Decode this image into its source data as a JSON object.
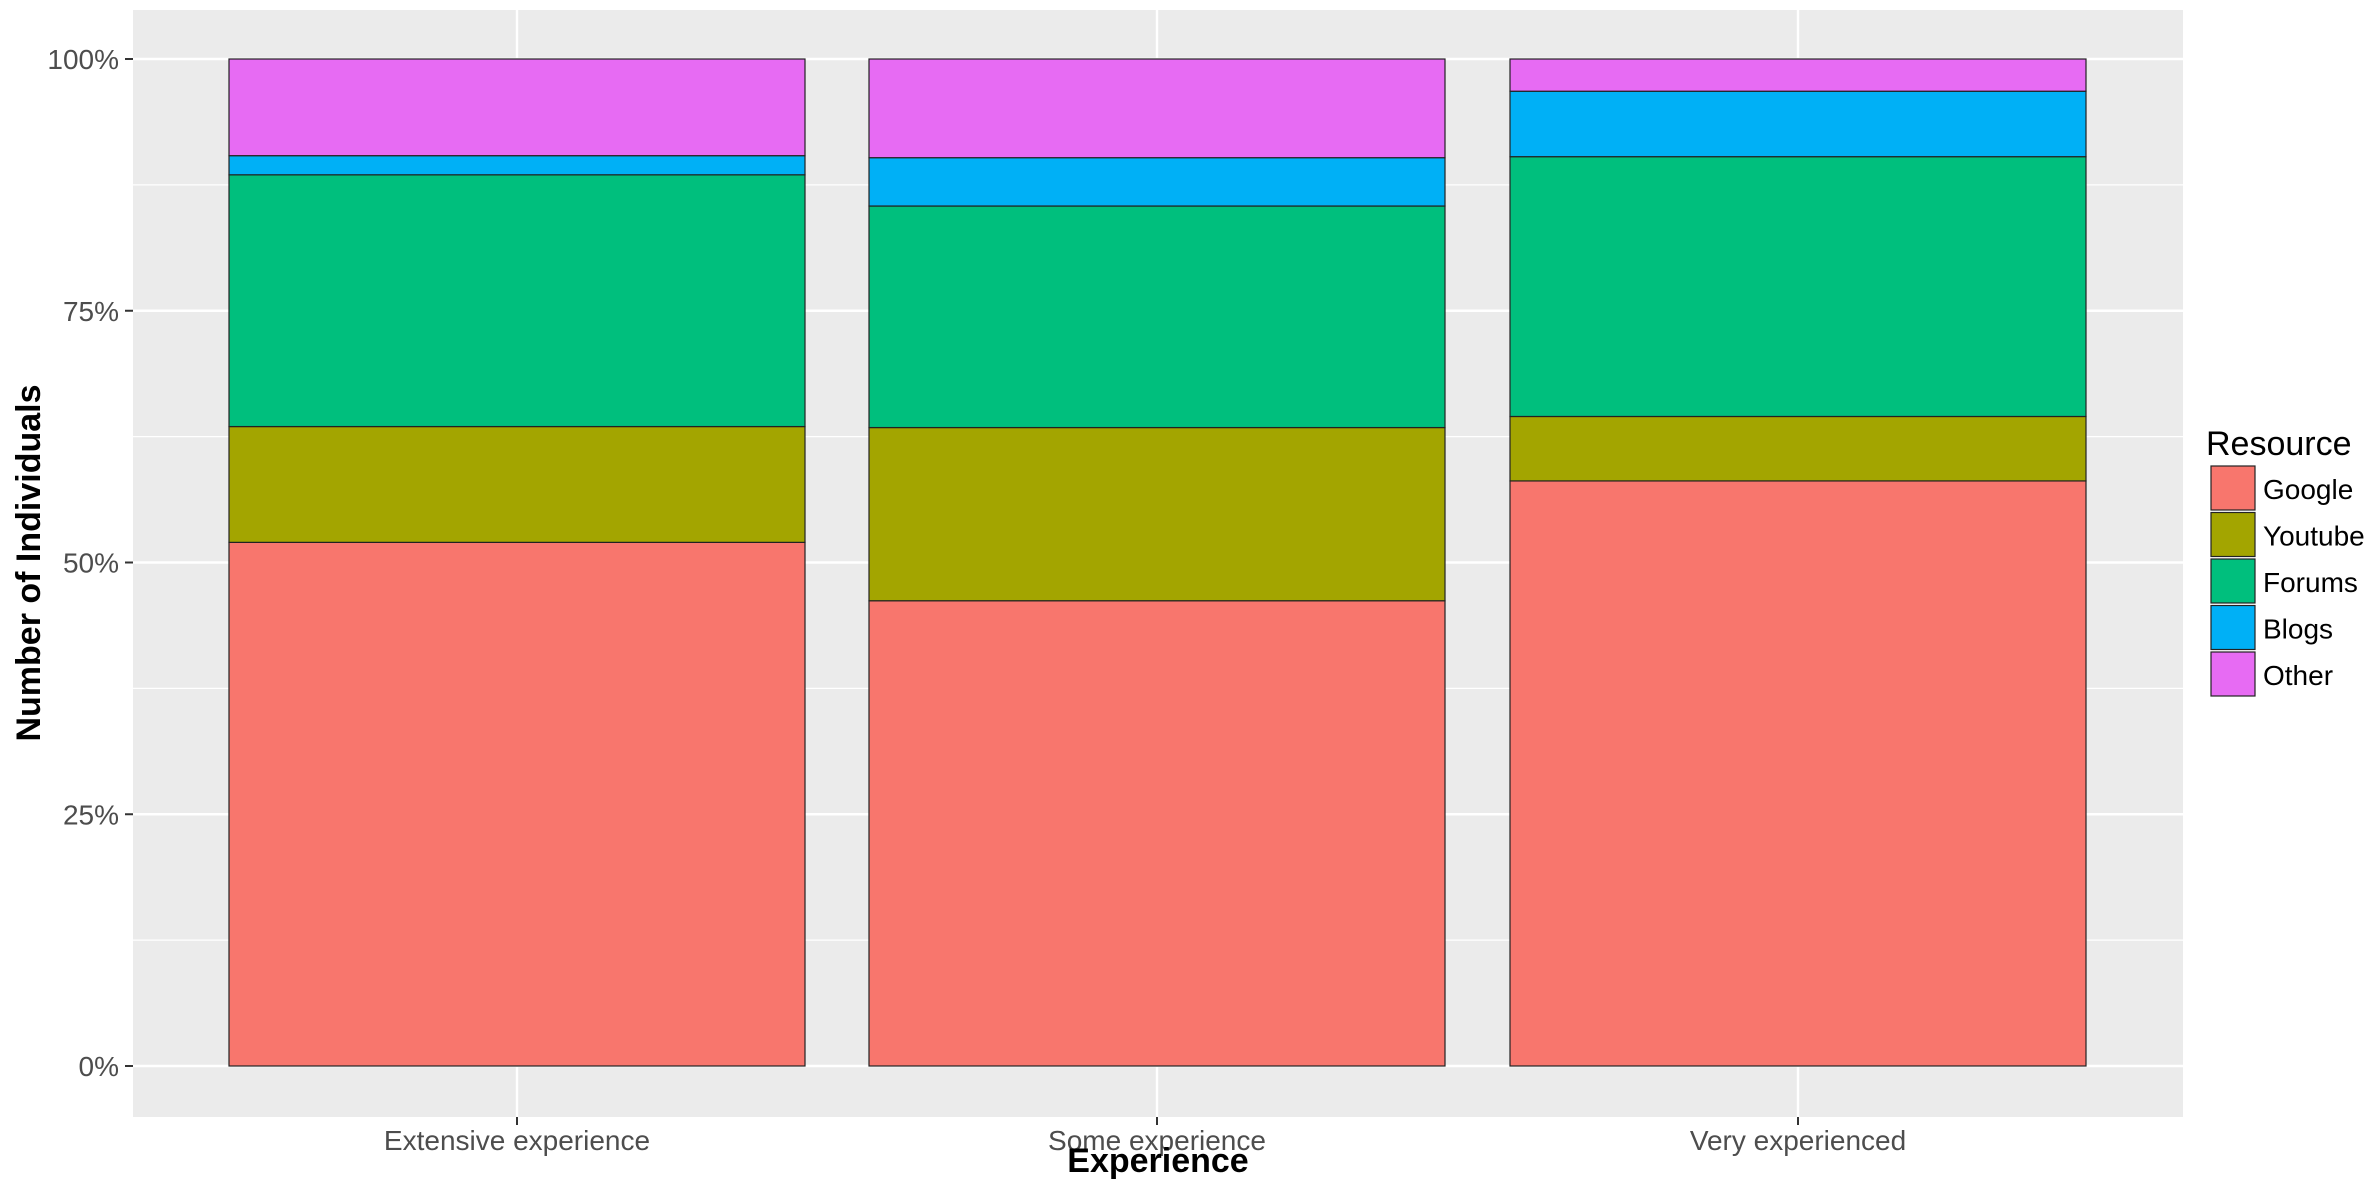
{
  "chart_data": {
    "type": "bar",
    "stacked": "percent",
    "categories": [
      "Extensive experience",
      "Some experience",
      "Very experienced"
    ],
    "series": [
      {
        "name": "Google",
        "color": "#F8766D",
        "values": [
          52.0,
          46.2,
          58.1
        ]
      },
      {
        "name": "Youtube",
        "color": "#A3A500",
        "values": [
          11.5,
          17.2,
          6.4
        ]
      },
      {
        "name": "Forums",
        "color": "#00BF7D",
        "values": [
          25.0,
          22.0,
          25.8
        ]
      },
      {
        "name": "Blogs",
        "color": "#00B0F6",
        "values": [
          1.9,
          4.8,
          6.5
        ]
      },
      {
        "name": "Other",
        "color": "#E76BF3",
        "values": [
          9.6,
          9.8,
          3.2
        ]
      }
    ],
    "title": "",
    "xlabel": "Experience",
    "ylabel": "Number of Individuals",
    "ylim": [
      0,
      100
    ],
    "yticks": [
      0,
      25,
      50,
      75,
      100
    ],
    "ytick_labels": [
      "0%",
      "25%",
      "50%",
      "75%",
      "100%"
    ],
    "grid": true,
    "legend": {
      "title": "Resource",
      "position": "right"
    },
    "panel_background": "#EBEBEB"
  }
}
